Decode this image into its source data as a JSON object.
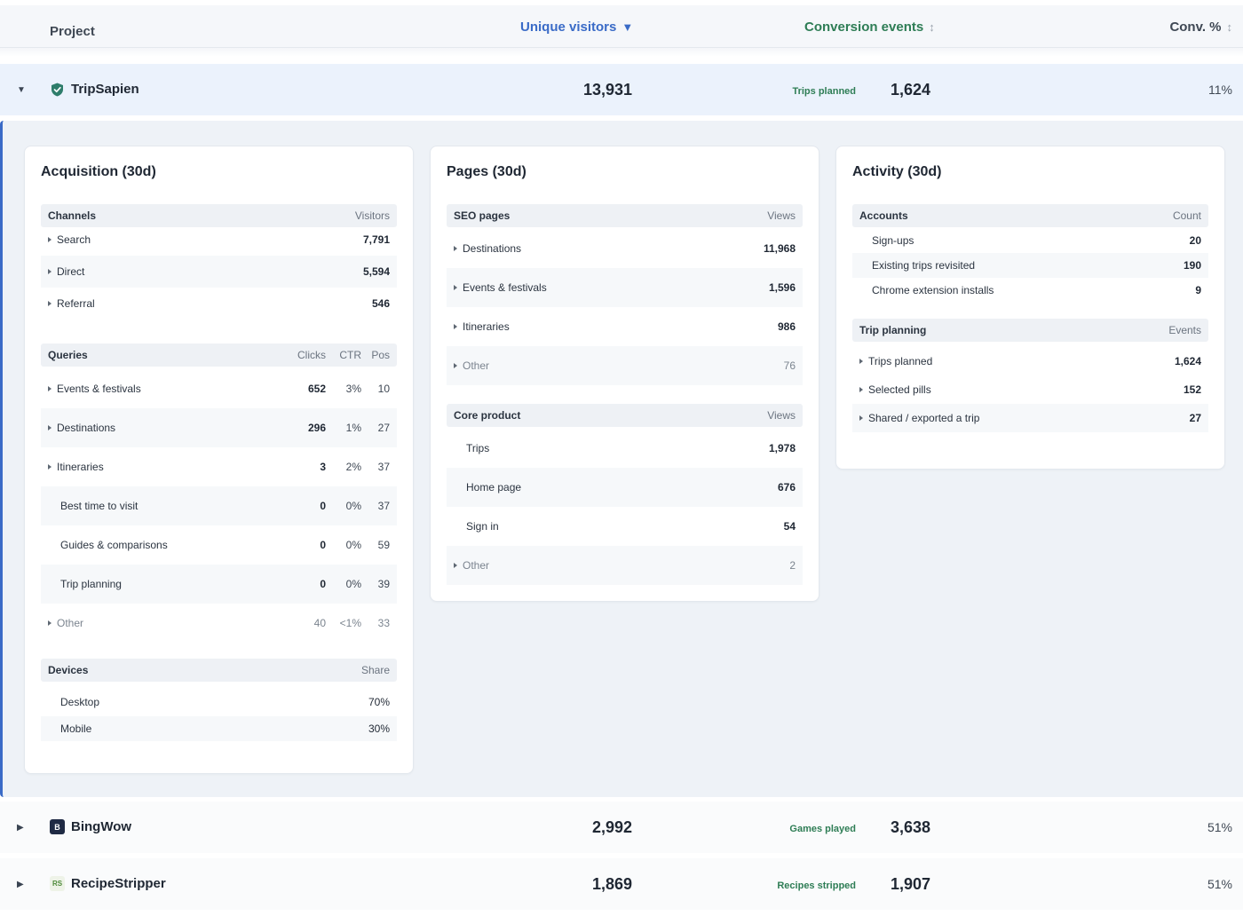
{
  "table_header": {
    "project": "Project",
    "unique_visitors": "Unique visitors",
    "unique_visitors_sort": "▼",
    "conversion_events": "Conversion events",
    "conversion_events_sort": "↕",
    "conv_pct": "Conv. %",
    "conv_pct_sort": "↕"
  },
  "projects": [
    {
      "name": "TripSapien",
      "caret": "▼",
      "unique_visitors": "13,931",
      "event_label": "Trips planned",
      "events": "1,624",
      "conv_pct": "11%",
      "logo_color": "#2e7d6b"
    },
    {
      "name": "BingWow",
      "caret": "▶",
      "logo_text": "B",
      "unique_visitors": "2,992",
      "event_label": "Games played",
      "events": "3,638",
      "conv_pct": "51%",
      "logo_color": "#1f2a44"
    },
    {
      "name": "RecipeStripper",
      "caret": "▶",
      "logo_text": "RS",
      "unique_visitors": "1,869",
      "event_label": "Recipes stripped",
      "events": "1,907",
      "conv_pct": "51%",
      "logo_color": "#4e8a3a"
    }
  ],
  "acquisition": {
    "title": "Acquisition (30d)",
    "channels": {
      "header": "Channels",
      "col": "Visitors",
      "rows": [
        {
          "label": "Search",
          "value": "7,791"
        },
        {
          "label": "Direct",
          "value": "5,594"
        },
        {
          "label": "Referral",
          "value": "546"
        }
      ]
    },
    "queries": {
      "header": "Queries",
      "cols": [
        "Clicks",
        "CTR",
        "Pos"
      ],
      "rows": [
        {
          "label": "Events & festivals",
          "clicks": "652",
          "ctr": "3%",
          "pos": "10"
        },
        {
          "label": "Destinations",
          "clicks": "296",
          "ctr": "1%",
          "pos": "27"
        },
        {
          "label": "Itineraries",
          "clicks": "3",
          "ctr": "2%",
          "pos": "37"
        },
        {
          "label": "Best time to visit",
          "clicks": "0",
          "ctr": "0%",
          "pos": "37"
        },
        {
          "label": "Guides & comparisons",
          "clicks": "0",
          "ctr": "0%",
          "pos": "59"
        },
        {
          "label": "Trip planning",
          "clicks": "0",
          "ctr": "0%",
          "pos": "39"
        },
        {
          "label": "Other",
          "clicks": "40",
          "ctr": "<1%",
          "pos": "33"
        }
      ]
    },
    "devices": {
      "header": "Devices",
      "col": "Share",
      "rows": [
        {
          "label": "Desktop",
          "value": "70%"
        },
        {
          "label": "Mobile",
          "value": "30%"
        }
      ]
    }
  },
  "pages": {
    "title": "Pages (30d)",
    "seo": {
      "header": "SEO pages",
      "col": "Views",
      "rows": [
        {
          "label": "Destinations",
          "value": "11,968"
        },
        {
          "label": "Events & festivals",
          "value": "1,596"
        },
        {
          "label": "Itineraries",
          "value": "986"
        },
        {
          "label": "Other",
          "value": "76"
        }
      ]
    },
    "core": {
      "header": "Core product",
      "col": "Views",
      "rows": [
        {
          "label": "Trips",
          "value": "1,978"
        },
        {
          "label": "Home page",
          "value": "676"
        },
        {
          "label": "Sign in",
          "value": "54"
        },
        {
          "label": "Other",
          "value": "2"
        }
      ]
    }
  },
  "activity": {
    "title": "Activity (30d)",
    "accounts": {
      "header": "Accounts",
      "col": "Count",
      "rows": [
        {
          "label": "Sign-ups",
          "value": "20"
        },
        {
          "label": "Existing trips revisited",
          "value": "190"
        },
        {
          "label": "Chrome extension installs",
          "value": "9"
        }
      ]
    },
    "trip_planning": {
      "header": "Trip planning",
      "col": "Events",
      "rows": [
        {
          "label": "Trips planned",
          "value": "1,624"
        },
        {
          "label": "Selected pills",
          "value": "152"
        },
        {
          "label": "Shared / exported a trip",
          "value": "27"
        }
      ]
    }
  }
}
